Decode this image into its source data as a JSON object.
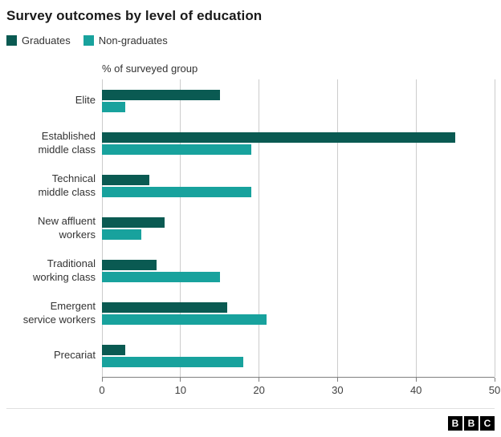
{
  "title": "Survey outcomes by level of education",
  "legend": [
    {
      "label": "Graduates",
      "color": "#0a5a52"
    },
    {
      "label": "Non-graduates",
      "color": "#18a29d"
    }
  ],
  "axis_label": "% of surveyed group",
  "footer": {
    "logo_letters": [
      "B",
      "B",
      "C"
    ]
  },
  "colors": {
    "gridline": "#cccccc",
    "axis": "#808080",
    "text": "#333333"
  },
  "chart_data": {
    "type": "bar",
    "orientation": "horizontal",
    "title": "Survey outcomes by level of education",
    "xlabel": "% of surveyed group",
    "ylabel": "",
    "xlim": [
      0,
      50
    ],
    "xticks": [
      0,
      10,
      20,
      30,
      40,
      50
    ],
    "grid": true,
    "legend_position": "top-left",
    "categories": [
      "Elite",
      "Established\nmiddle class",
      "Technical\nmiddle class",
      "New affluent\nworkers",
      "Traditional\nworking class",
      "Emergent\nservice workers",
      "Precariat"
    ],
    "series": [
      {
        "name": "Graduates",
        "color": "#0a5a52",
        "values": [
          15,
          45,
          6,
          8,
          7,
          16,
          3
        ]
      },
      {
        "name": "Non-graduates",
        "color": "#18a29d",
        "values": [
          3,
          19,
          19,
          5,
          15,
          21,
          18
        ]
      }
    ]
  }
}
